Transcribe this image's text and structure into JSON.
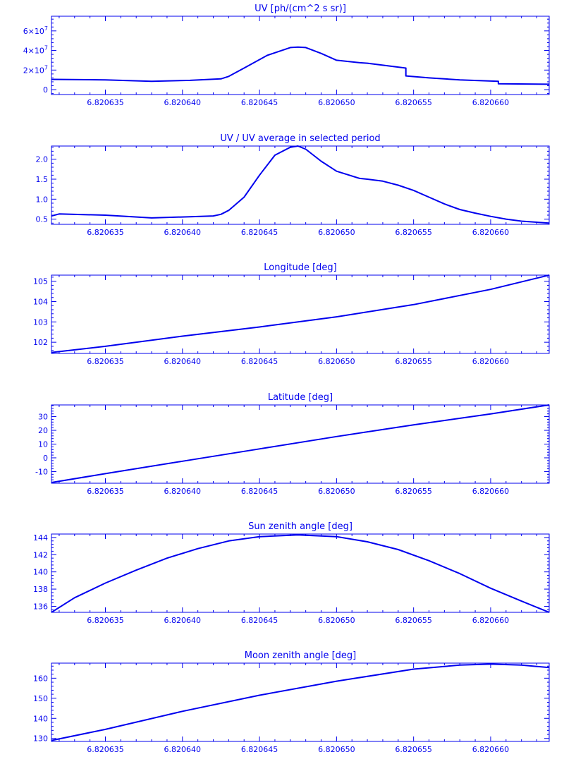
{
  "colors": {
    "line": "#0000ee",
    "background": "#ffffff"
  },
  "x_tick_labels": [
    "6.820635",
    "6.820640",
    "6.820645",
    "6.820650",
    "6.820655",
    "6.820660"
  ],
  "chart_data": [
    {
      "type": "line",
      "title": "UV [ph/(cm^2 s sr)]",
      "xlabel": "",
      "ylabel": "",
      "xlim": [
        6.8206315,
        6.8206638
      ],
      "ylim": [
        -5000000,
        75000000
      ],
      "y_ticks": [
        0,
        20000000,
        40000000,
        60000000
      ],
      "y_tick_labels": [
        {
          "mant": "0",
          "exp": ""
        },
        {
          "mant": "2×10",
          "exp": "7"
        },
        {
          "mant": "4×10",
          "exp": "7"
        },
        {
          "mant": "6×10",
          "exp": "7"
        }
      ],
      "x": [
        6.8206315,
        6.820635,
        6.820638,
        6.8206405,
        6.8206425,
        6.820643,
        6.820644,
        6.8206455,
        6.820647,
        6.8206475,
        6.820648,
        6.820649,
        6.82065,
        6.8206515,
        6.820652,
        6.820653,
        6.8206545,
        6.8206545,
        6.820656,
        6.820658,
        6.8206605,
        6.8206605,
        6.8206638
      ],
      "y": [
        10500000,
        10000000,
        8500000,
        9500000,
        11000000,
        13500000,
        22000000,
        35000000,
        43000000,
        43500000,
        43000000,
        37000000,
        30000000,
        27500000,
        27000000,
        25000000,
        22000000,
        14000000,
        12000000,
        10000000,
        8500000,
        6000000,
        5500000
      ]
    },
    {
      "type": "line",
      "title": "UV / UV average in selected period",
      "xlabel": "",
      "ylabel": "",
      "xlim": [
        6.8206315,
        6.8206638
      ],
      "ylim": [
        0.37,
        2.33
      ],
      "y_ticks": [
        0.5,
        1.0,
        1.5,
        2.0
      ],
      "y_tick_labels": [
        {
          "mant": "0.5",
          "exp": ""
        },
        {
          "mant": "1.0",
          "exp": ""
        },
        {
          "mant": "1.5",
          "exp": ""
        },
        {
          "mant": "2.0",
          "exp": ""
        }
      ],
      "x": [
        6.8206315,
        6.820632,
        6.820635,
        6.820638,
        6.8206405,
        6.820642,
        6.8206425,
        6.820643,
        6.820644,
        6.820645,
        6.820646,
        6.820647,
        6.8206475,
        6.820648,
        6.820649,
        6.82065,
        6.8206515,
        6.820652,
        6.820653,
        6.820654,
        6.820655,
        6.820656,
        6.820657,
        6.820658,
        6.820659,
        6.82066,
        6.820661,
        6.820662,
        6.8206638
      ],
      "y": [
        0.58,
        0.63,
        0.6,
        0.53,
        0.56,
        0.58,
        0.62,
        0.72,
        1.05,
        1.6,
        2.1,
        2.3,
        2.33,
        2.25,
        1.95,
        1.7,
        1.52,
        1.5,
        1.45,
        1.35,
        1.22,
        1.05,
        0.88,
        0.74,
        0.65,
        0.57,
        0.5,
        0.45,
        0.4
      ]
    },
    {
      "type": "line",
      "title": "Longitude [deg]",
      "xlabel": "",
      "ylabel": "",
      "xlim": [
        6.8206315,
        6.8206638
      ],
      "ylim": [
        101.45,
        105.3
      ],
      "y_ticks": [
        102,
        103,
        104,
        105
      ],
      "y_tick_labels": [
        {
          "mant": "102",
          "exp": ""
        },
        {
          "mant": "103",
          "exp": ""
        },
        {
          "mant": "104",
          "exp": ""
        },
        {
          "mant": "105",
          "exp": ""
        }
      ],
      "x": [
        6.8206315,
        6.820635,
        6.82064,
        6.820645,
        6.82065,
        6.820655,
        6.82066,
        6.8206638
      ],
      "y": [
        101.5,
        101.8,
        102.3,
        102.75,
        103.25,
        103.85,
        104.6,
        105.3
      ]
    },
    {
      "type": "line",
      "title": "Latitude [deg]",
      "xlabel": "",
      "ylabel": "",
      "xlim": [
        6.8206315,
        6.8206638
      ],
      "ylim": [
        -18.5,
        38.5
      ],
      "y_ticks": [
        -10,
        0,
        10,
        20,
        30
      ],
      "y_tick_labels": [
        {
          "mant": "-10",
          "exp": ""
        },
        {
          "mant": "0",
          "exp": ""
        },
        {
          "mant": "10",
          "exp": ""
        },
        {
          "mant": "20",
          "exp": ""
        },
        {
          "mant": "30",
          "exp": ""
        }
      ],
      "x": [
        6.8206315,
        6.820635,
        6.82064,
        6.820645,
        6.82065,
        6.820655,
        6.82066,
        6.8206638
      ],
      "y": [
        -18.0,
        -11.5,
        -2.5,
        6.5,
        15.5,
        24.0,
        32.0,
        38.5
      ]
    },
    {
      "type": "line",
      "title": "Sun zenith angle [deg]",
      "xlabel": "",
      "ylabel": "",
      "xlim": [
        6.8206315,
        6.8206638
      ],
      "ylim": [
        135.3,
        144.4
      ],
      "y_ticks": [
        136,
        138,
        140,
        142,
        144
      ],
      "y_tick_labels": [
        {
          "mant": "136",
          "exp": ""
        },
        {
          "mant": "138",
          "exp": ""
        },
        {
          "mant": "140",
          "exp": ""
        },
        {
          "mant": "142",
          "exp": ""
        },
        {
          "mant": "144",
          "exp": ""
        }
      ],
      "x": [
        6.8206315,
        6.820633,
        6.820635,
        6.820637,
        6.820639,
        6.820641,
        6.820643,
        6.820645,
        6.8206475,
        6.82065,
        6.820652,
        6.820654,
        6.820656,
        6.820658,
        6.82066,
        6.820662,
        6.8206638
      ],
      "y": [
        135.3,
        137.0,
        138.7,
        140.2,
        141.6,
        142.7,
        143.6,
        144.1,
        144.3,
        144.1,
        143.5,
        142.6,
        141.3,
        139.8,
        138.1,
        136.6,
        135.3
      ]
    },
    {
      "type": "line",
      "title": "Moon zenith angle [deg]",
      "xlabel": "",
      "ylabel": "",
      "xlim": [
        6.8206315,
        6.8206638
      ],
      "ylim": [
        128.5,
        167.5
      ],
      "y_ticks": [
        130,
        140,
        150,
        160
      ],
      "y_tick_labels": [
        {
          "mant": "130",
          "exp": ""
        },
        {
          "mant": "140",
          "exp": ""
        },
        {
          "mant": "150",
          "exp": ""
        },
        {
          "mant": "160",
          "exp": ""
        }
      ],
      "x": [
        6.8206315,
        6.820635,
        6.82064,
        6.820645,
        6.82065,
        6.820655,
        6.820658,
        6.82066,
        6.820662,
        6.8206638
      ],
      "y": [
        129.0,
        134.5,
        143.5,
        151.5,
        158.5,
        164.5,
        166.5,
        167.0,
        166.5,
        165.3
      ]
    }
  ]
}
